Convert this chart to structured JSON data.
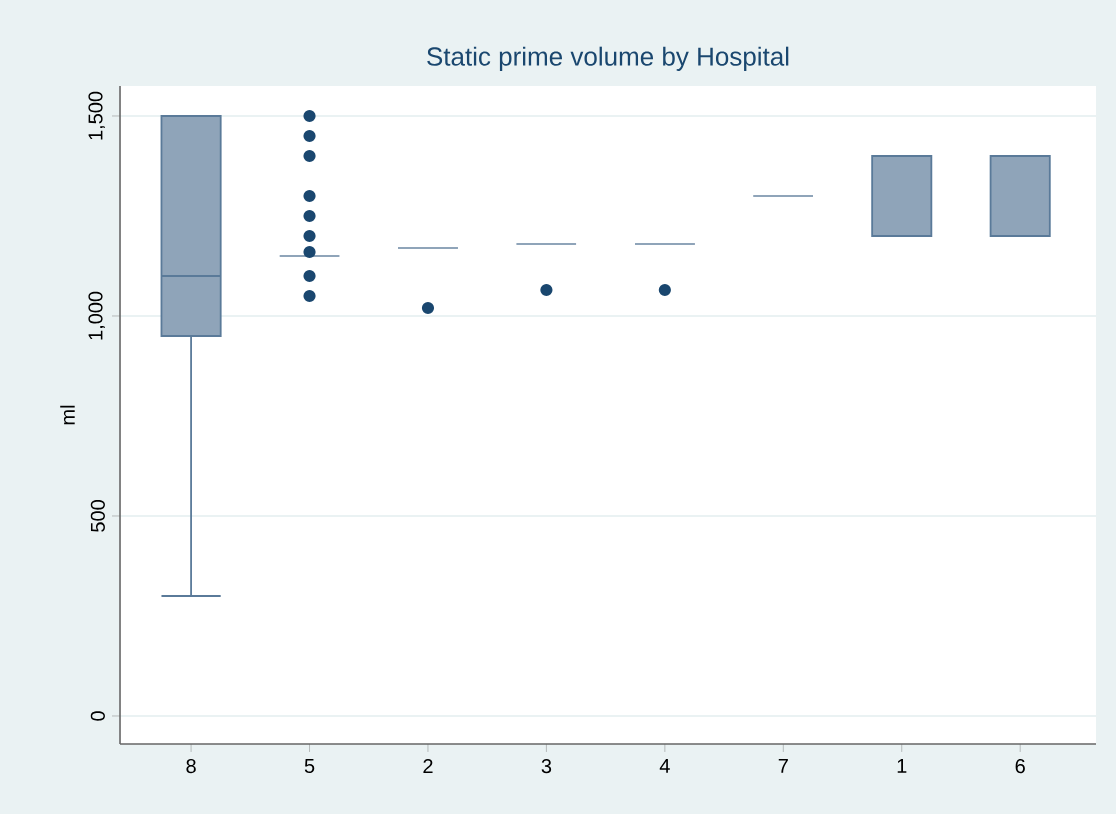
{
  "chart_data": {
    "type": "box",
    "title": "Static prime volume by Hospital",
    "ylabel": "ml",
    "categories": [
      "8",
      "5",
      "2",
      "3",
      "4",
      "7",
      "1",
      "6"
    ],
    "series": [
      {
        "color": "#8fa4b9",
        "boxes": [
          {
            "low": 300,
            "q1": 950,
            "median": 1100,
            "q3": 1500,
            "high": 1500
          },
          {
            "low": 1150,
            "q1": 1150,
            "median": 1150,
            "q3": 1150,
            "high": 1150,
            "outliers": [
              1050,
              1100,
              1160,
              1200,
              1250,
              1300,
              1400,
              1450,
              1500
            ]
          },
          {
            "low": 1170,
            "q1": 1170,
            "median": 1170,
            "q3": 1170,
            "high": 1170,
            "outliers": [
              1020
            ]
          },
          {
            "low": 1180,
            "q1": 1180,
            "median": 1180,
            "q3": 1180,
            "high": 1180,
            "outliers": [
              1065
            ]
          },
          {
            "low": 1180,
            "q1": 1180,
            "median": 1180,
            "q3": 1180,
            "high": 1180,
            "outliers": [
              1065
            ]
          },
          {
            "low": 1300,
            "q1": 1300,
            "median": 1300,
            "q3": 1300,
            "high": 1300
          },
          {
            "low": 1200,
            "q1": 1200,
            "median": 1200,
            "q3": 1400,
            "high": 1400
          },
          {
            "low": 1200,
            "q1": 1200,
            "median": 1200,
            "q3": 1400,
            "high": 1400
          }
        ]
      }
    ],
    "ylim": [
      -70,
      1575
    ],
    "yticks": [
      {
        "value": 0,
        "label": "0"
      },
      {
        "value": 500,
        "label": "500"
      },
      {
        "value": 1000,
        "label": "1,000"
      },
      {
        "value": 1500,
        "label": "1,500"
      }
    ],
    "grid": "y"
  }
}
